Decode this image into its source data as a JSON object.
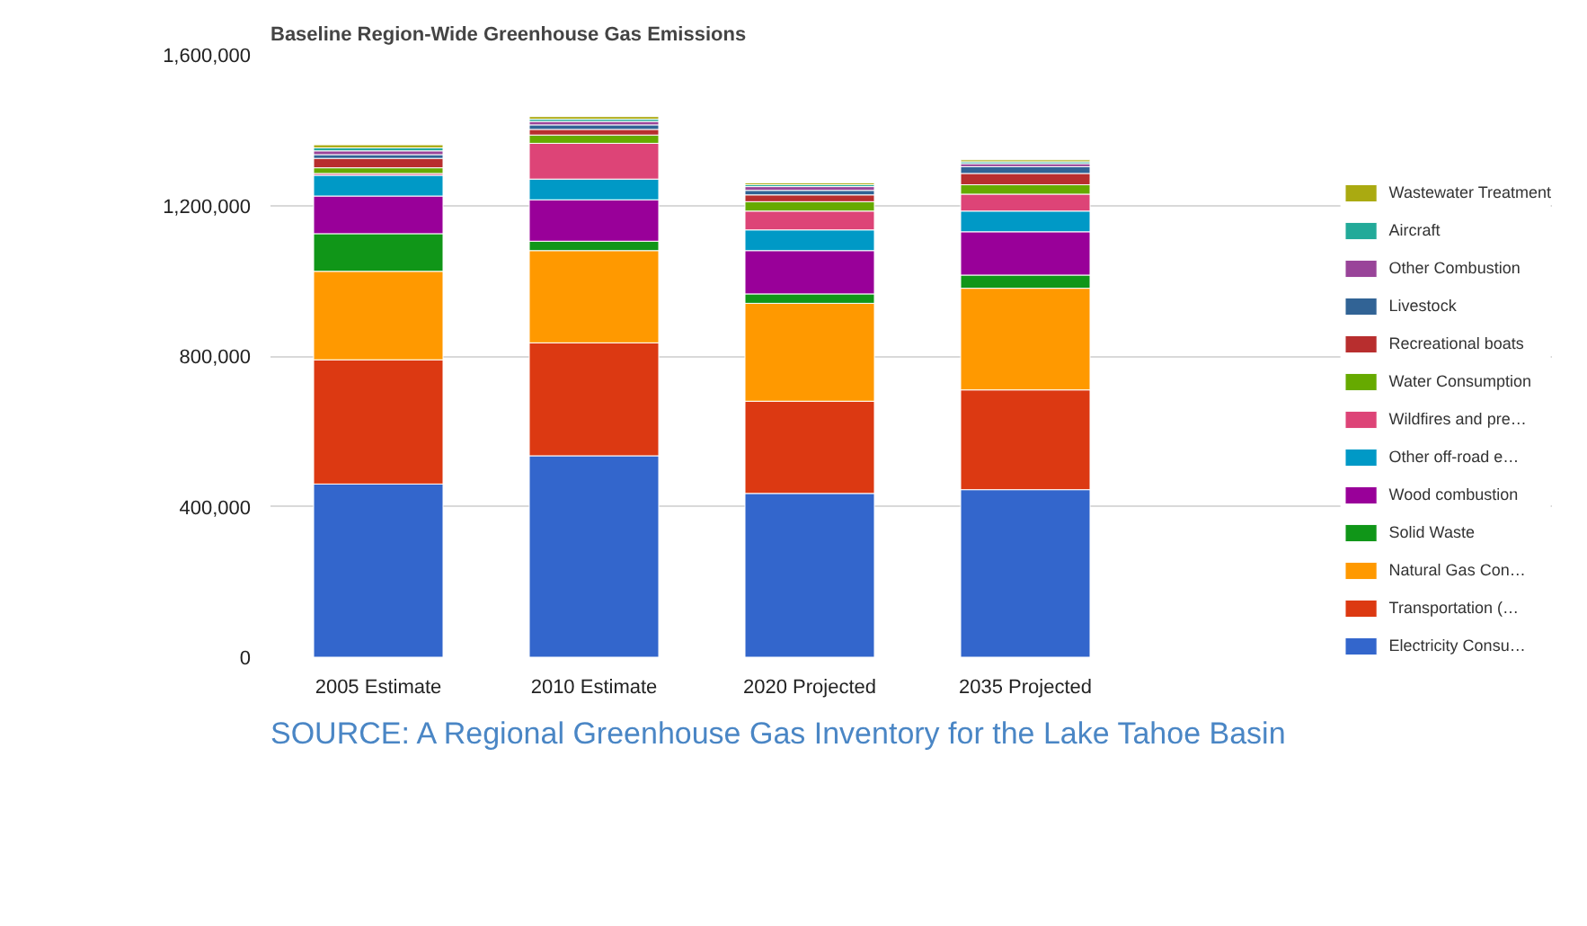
{
  "chart_data": {
    "type": "bar",
    "stacked": true,
    "title": "Baseline Region-Wide Greenhouse Gas Emissions",
    "categories": [
      "2005 Estimate",
      "2010 Estimate",
      "2020 Projected",
      "2035 Projected"
    ],
    "ylim": [
      0,
      1600000
    ],
    "yticks": [
      {
        "value": 0,
        "label": "0"
      },
      {
        "value": 400000,
        "label": "400,000"
      },
      {
        "value": 800000,
        "label": "800,000"
      },
      {
        "value": 1200000,
        "label": "1,200,000"
      },
      {
        "value": 1600000,
        "label": "1,600,000"
      }
    ],
    "grid": "y",
    "legend": "right",
    "annotations": [
      "SOURCE: A Regional Greenhouse Gas Inventory for the Lake Tahoe Basin"
    ],
    "series": [
      {
        "name": "Electricity Consu…",
        "color": "#3366cc",
        "values": [
          460000,
          535000,
          435000,
          445000
        ]
      },
      {
        "name": "Transportation (…",
        "color": "#dc3912",
        "values": [
          330000,
          300000,
          245000,
          265000
        ]
      },
      {
        "name": "Natural Gas Con…",
        "color": "#ff9900",
        "values": [
          235000,
          245000,
          260000,
          270000
        ]
      },
      {
        "name": "Solid Waste",
        "color": "#109618",
        "values": [
          100000,
          25000,
          25000,
          35000
        ]
      },
      {
        "name": "Wood combustion",
        "color": "#990099",
        "values": [
          100000,
          110000,
          115000,
          115000
        ]
      },
      {
        "name": "Other off-road e…",
        "color": "#0099c6",
        "values": [
          55000,
          55000,
          55000,
          55000
        ]
      },
      {
        "name": "Wildfires and pre…",
        "color": "#dd4477",
        "values": [
          5000,
          95000,
          50000,
          45000
        ]
      },
      {
        "name": "Water Consumption",
        "color": "#66aa00",
        "values": [
          15000,
          22000,
          25000,
          25000
        ]
      },
      {
        "name": "Recreational boats",
        "color": "#b82e2e",
        "values": [
          25000,
          15000,
          18000,
          30000
        ]
      },
      {
        "name": "Livestock",
        "color": "#316395",
        "values": [
          10000,
          12000,
          12000,
          18000
        ]
      },
      {
        "name": "Other Combustion",
        "color": "#994499",
        "values": [
          10000,
          9000,
          10000,
          8000
        ]
      },
      {
        "name": "Aircraft",
        "color": "#22aa99",
        "values": [
          8000,
          6000,
          5000,
          5000
        ]
      },
      {
        "name": "Wastewater Treatment",
        "color": "#aaaa11",
        "values": [
          8000,
          7000,
          5000,
          5000
        ]
      }
    ]
  }
}
